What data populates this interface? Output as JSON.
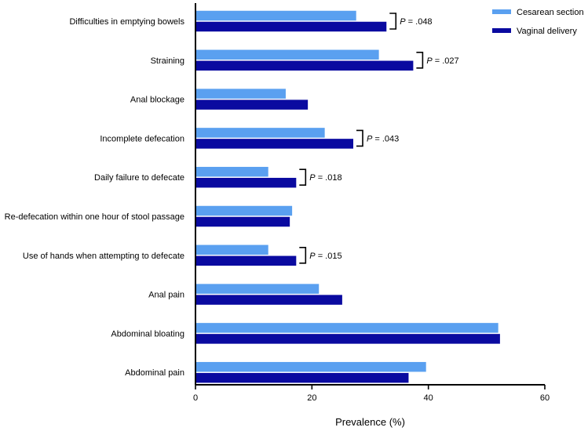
{
  "chart_data": {
    "type": "bar",
    "orientation": "horizontal",
    "title": "",
    "xlabel": "Prevalence (%)",
    "ylabel": "",
    "xlim": [
      0,
      60
    ],
    "xticks": [
      0,
      20,
      40,
      60
    ],
    "categories": [
      "Difficulties in emptying bowels",
      "Straining",
      "Anal blockage",
      "Incomplete defecation",
      "Daily failure to defecate",
      "Re-defecation within one hour of stool passage",
      "Use of hands when attempting to defecate",
      "Anal pain",
      "Abdominal bloating",
      "Abdominal pain"
    ],
    "series": [
      {
        "name": "Cesarean section",
        "color": "#5aa0f0",
        "values": [
          27.6,
          31.5,
          15.5,
          22.2,
          12.5,
          16.6,
          12.5,
          21.2,
          52.0,
          39.6
        ]
      },
      {
        "name": "Vaginal delivery",
        "color": "#0a0aa0",
        "values": [
          32.8,
          37.4,
          19.3,
          27.1,
          17.3,
          16.2,
          17.3,
          25.2,
          52.3,
          36.6
        ]
      }
    ],
    "legend": "top-right",
    "annotations": [
      {
        "category_index": 0,
        "text": ".048"
      },
      {
        "category_index": 1,
        "text": ".027"
      },
      {
        "category_index": 3,
        "text": ".043"
      },
      {
        "category_index": 4,
        "text": ".018"
      },
      {
        "category_index": 6,
        "text": ".015"
      }
    ],
    "annotation_prefix": "P",
    "annotation_eq": " = "
  }
}
